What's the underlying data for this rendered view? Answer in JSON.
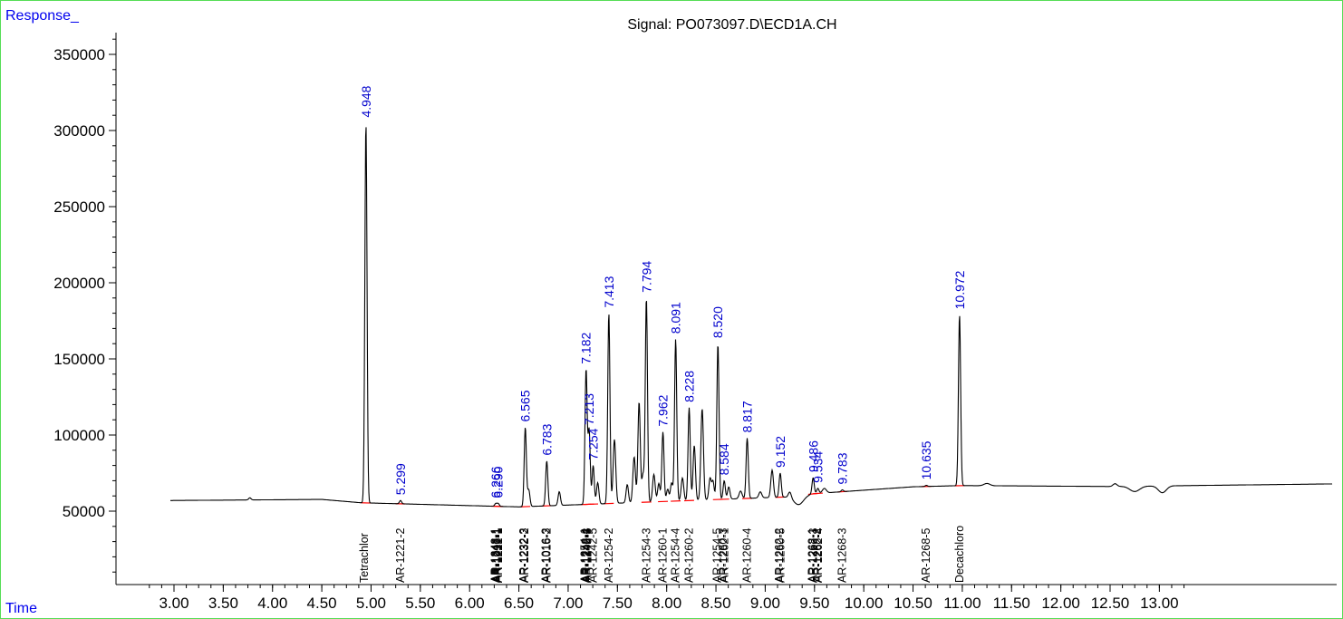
{
  "chart_data": {
    "type": "line",
    "title": "Signal: PO073097.D\\ECD1A.CH",
    "ylabel": "Response_",
    "xlabel": "Time",
    "xlim": [
      2.7,
      13.3
    ],
    "ylim": [
      0,
      365000
    ],
    "x_ticks": [
      "3.00",
      "3.50",
      "4.00",
      "4.50",
      "5.00",
      "5.50",
      "6.00",
      "6.50",
      "7.00",
      "7.50",
      "8.00",
      "8.50",
      "9.00",
      "9.50",
      "10.00",
      "10.50",
      "11.00",
      "11.50",
      "12.00",
      "12.50",
      "13.00"
    ],
    "y_ticks": [
      "50000",
      "100000",
      "150000",
      "200000",
      "250000",
      "300000",
      "350000"
    ],
    "line_color": "#000000",
    "baseline_color": "#ff0000",
    "peak_label_color": "#0000cc",
    "peaks": [
      {
        "rt": 4.948,
        "label": "4.948",
        "height": 305000
      },
      {
        "rt": 5.299,
        "label": "5.299",
        "height": 57000
      },
      {
        "rt": 6.266,
        "label": "6.266",
        "height": 55000
      },
      {
        "rt": 6.29,
        "label": "6.290",
        "height": 55000
      },
      {
        "rt": 6.565,
        "label": "6.565",
        "height": 105000
      },
      {
        "rt": 6.783,
        "label": "6.783",
        "height": 83000
      },
      {
        "rt": 7.182,
        "label": "7.182",
        "height": 143000
      },
      {
        "rt": 7.213,
        "label": "7.213",
        "height": 103000
      },
      {
        "rt": 7.254,
        "label": "7.254",
        "height": 80000
      },
      {
        "rt": 7.413,
        "label": "7.413",
        "height": 180000
      },
      {
        "rt": 7.794,
        "label": "7.794",
        "height": 190000
      },
      {
        "rt": 7.962,
        "label": "7.962",
        "height": 102000
      },
      {
        "rt": 8.091,
        "label": "8.091",
        "height": 163000
      },
      {
        "rt": 8.228,
        "label": "8.228",
        "height": 118000
      },
      {
        "rt": 8.52,
        "label": "8.520",
        "height": 160000
      },
      {
        "rt": 8.584,
        "label": "8.584",
        "height": 70000
      },
      {
        "rt": 8.817,
        "label": "8.817",
        "height": 98000
      },
      {
        "rt": 9.152,
        "label": "9.152",
        "height": 75000
      },
      {
        "rt": 9.486,
        "label": "9.486",
        "height": 72000
      },
      {
        "rt": 9.534,
        "label": "9.534",
        "height": 65000
      },
      {
        "rt": 9.783,
        "label": "9.783",
        "height": 64000
      },
      {
        "rt": 10.635,
        "label": "10.635",
        "height": 67000
      },
      {
        "rt": 10.972,
        "label": "10.972",
        "height": 179000
      }
    ],
    "compounds": [
      {
        "rt": 4.93,
        "name": "Tetrachlor"
      },
      {
        "rt": 5.299,
        "name": "AR-1221-2"
      },
      {
        "rt": 6.262,
        "name": "AR-1248-1"
      },
      {
        "rt": 6.27,
        "name": "AR-1242-1"
      },
      {
        "rt": 6.278,
        "name": "AR-1016-1"
      },
      {
        "rt": 6.286,
        "name": "AR-1232-1"
      },
      {
        "rt": 6.294,
        "name": "AR-1221-1"
      },
      {
        "rt": 6.55,
        "name": "AR-1232-3"
      },
      {
        "rt": 6.56,
        "name": "AR-1232-2"
      },
      {
        "rt": 6.776,
        "name": "AR-1016-3"
      },
      {
        "rt": 6.786,
        "name": "AR-1016-2"
      },
      {
        "rt": 7.17,
        "name": "AR-1254-1"
      },
      {
        "rt": 7.18,
        "name": "AR-1248-4"
      },
      {
        "rt": 7.19,
        "name": "AR-1242-3"
      },
      {
        "rt": 7.2,
        "name": "AR-1248-5"
      },
      {
        "rt": 7.254,
        "name": "AR-1242-5"
      },
      {
        "rt": 7.413,
        "name": "AR-1254-2"
      },
      {
        "rt": 7.794,
        "name": "AR-1254-3"
      },
      {
        "rt": 7.962,
        "name": "AR-1260-1"
      },
      {
        "rt": 8.091,
        "name": "AR-1254-4"
      },
      {
        "rt": 8.228,
        "name": "AR-1260-2"
      },
      {
        "rt": 8.515,
        "name": "AR-1254-5"
      },
      {
        "rt": 8.575,
        "name": "AR-1260-3"
      },
      {
        "rt": 8.585,
        "name": "AR-1262-1"
      },
      {
        "rt": 8.817,
        "name": "AR-1260-4"
      },
      {
        "rt": 9.145,
        "name": "AR-1262-2"
      },
      {
        "rt": 9.155,
        "name": "AR-1260-5"
      },
      {
        "rt": 9.48,
        "name": "AR-1268-1"
      },
      {
        "rt": 9.49,
        "name": "AR-1262-3"
      },
      {
        "rt": 9.53,
        "name": "AR-1268-2"
      },
      {
        "rt": 9.54,
        "name": "AR-1262-4"
      },
      {
        "rt": 9.783,
        "name": "AR-1268-3"
      },
      {
        "rt": 10.635,
        "name": "AR-1268-5"
      },
      {
        "rt": 10.972,
        "name": "Decachloro"
      }
    ]
  }
}
